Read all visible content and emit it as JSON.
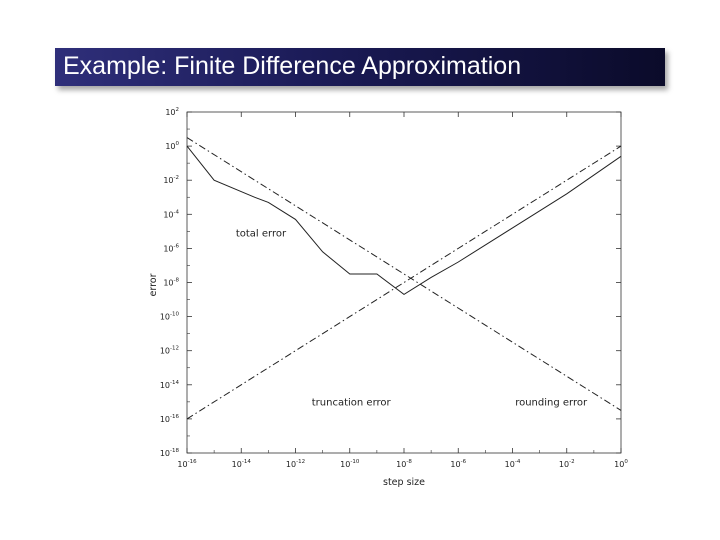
{
  "slide": {
    "title": "Example: Finite Difference Approximation",
    "accent_color": "#1a1a55"
  },
  "chart_data": {
    "type": "line",
    "scale": "log-log",
    "xlabel": "step size",
    "ylabel": "error",
    "x_ticks": [
      "10^-16",
      "10^-14",
      "10^-12",
      "10^-10",
      "10^-8",
      "10^-6",
      "10^-4",
      "10^-2",
      "10^0"
    ],
    "y_ticks": [
      "10^2",
      "10^0",
      "10^-2",
      "10^-4",
      "10^-6",
      "10^-8",
      "10^-10",
      "10^-12",
      "10^-14",
      "10^-16",
      "10^-18"
    ],
    "xlim_exp": [
      -16,
      0
    ],
    "ylim_exp": [
      -18,
      2
    ],
    "series": [
      {
        "name": "total error",
        "style": "solid",
        "x_exp": [
          -16,
          -15,
          -13.5,
          -13,
          -12,
          -11,
          -10,
          -9,
          -8,
          -7,
          -6,
          -4,
          -2,
          0
        ],
        "y_exp": [
          0,
          -2,
          -3,
          -3.3,
          -4.3,
          -6.2,
          -7.5,
          -7.5,
          -8.7,
          -7.7,
          -6.8,
          -4.8,
          -2.8,
          -0.6
        ]
      },
      {
        "name": "truncation error",
        "style": "dash-dot",
        "x_exp": [
          -16,
          -8,
          0
        ],
        "y_exp": [
          -16,
          -8,
          0
        ]
      },
      {
        "name": "rounding error",
        "style": "dash-dot",
        "x_exp": [
          -16,
          -8,
          0
        ],
        "y_exp": [
          0.5,
          -7.5,
          -15.5
        ]
      }
    ],
    "annotations": [
      {
        "text": "total error",
        "x_exp": -14.2,
        "y_exp": -5.3
      },
      {
        "text": "truncation error",
        "x_exp": -11.4,
        "y_exp": -15.2
      },
      {
        "text": "rounding error",
        "x_exp": -3.9,
        "y_exp": -15.2
      }
    ],
    "grid": false,
    "legend": "none"
  }
}
